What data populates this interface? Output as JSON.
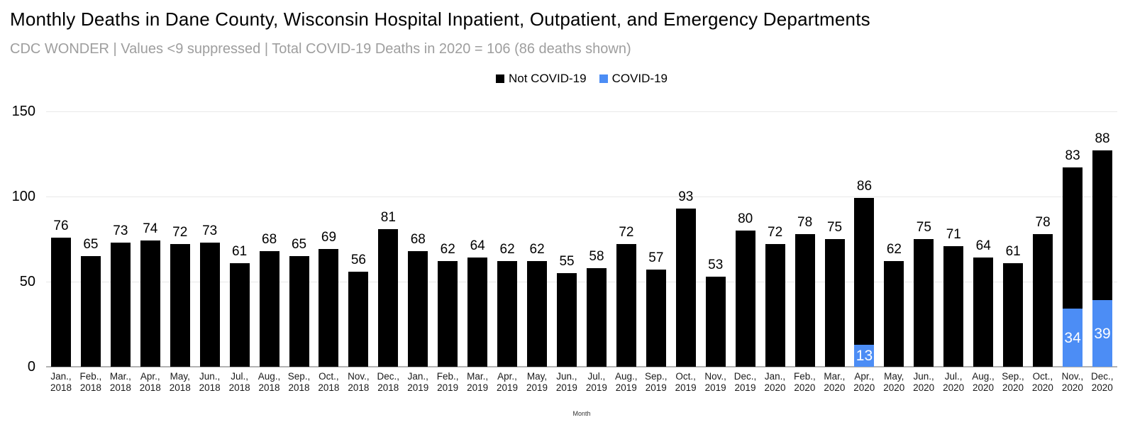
{
  "chart_data": {
    "type": "bar",
    "stacked": true,
    "title": "Monthly Deaths in Dane County, Wisconsin Hospital Inpatient, Outpatient, and Emergency Departments",
    "subtitle": "CDC WONDER | Values <9 suppressed | Total COVID-19 Deaths in 2020 = 106 (86 deaths shown)",
    "xlabel": "Month",
    "ylabel": "",
    "ylim": [
      0,
      150
    ],
    "yticks": [
      0,
      50,
      100,
      150
    ],
    "grid": true,
    "legend_position": "top",
    "categories": [
      "Jan., 2018",
      "Feb., 2018",
      "Mar., 2018",
      "Apr., 2018",
      "May, 2018",
      "Jun., 2018",
      "Jul., 2018",
      "Aug., 2018",
      "Sep., 2018",
      "Oct., 2018",
      "Nov., 2018",
      "Dec., 2018",
      "Jan., 2019",
      "Feb., 2019",
      "Mar., 2019",
      "Apr., 2019",
      "May, 2019",
      "Jun., 2019",
      "Jul., 2019",
      "Aug., 2019",
      "Sep., 2019",
      "Oct., 2019",
      "Nov., 2019",
      "Dec., 2019",
      "Jan., 2020",
      "Feb., 2020",
      "Mar., 2020",
      "Apr., 2020",
      "May, 2020",
      "Jun., 2020",
      "Jul., 2020",
      "Aug., 2020",
      "Sep., 2020",
      "Oct., 2020",
      "Nov., 2020",
      "Dec., 2020"
    ],
    "series": [
      {
        "name": "Not COVID-19",
        "color": "#000000",
        "values": [
          76,
          65,
          73,
          74,
          72,
          73,
          61,
          68,
          65,
          69,
          56,
          81,
          68,
          62,
          64,
          62,
          62,
          55,
          58,
          72,
          57,
          93,
          53,
          80,
          72,
          78,
          75,
          86,
          62,
          75,
          71,
          64,
          61,
          78,
          83,
          88
        ]
      },
      {
        "name": "COVID-19",
        "color": "#4c8df5",
        "values": [
          0,
          0,
          0,
          0,
          0,
          0,
          0,
          0,
          0,
          0,
          0,
          0,
          0,
          0,
          0,
          0,
          0,
          0,
          0,
          0,
          0,
          0,
          0,
          0,
          0,
          0,
          0,
          13,
          0,
          0,
          0,
          0,
          0,
          0,
          34,
          39
        ]
      }
    ],
    "bar_value_labels_source": "Not COVID-19",
    "covid_inside_labels": {
      "Apr., 2020": 13,
      "Nov., 2020": 34,
      "Dec., 2020": 39
    }
  },
  "colors": {
    "subtitle_text": "#9e9e9e",
    "grid_line": "#e9e9e9",
    "axis_line": "#b3b3b3",
    "not_covid_bar": "#000000",
    "covid_bar": "#4c8df5",
    "covid_inside_text": "#ffffff"
  }
}
